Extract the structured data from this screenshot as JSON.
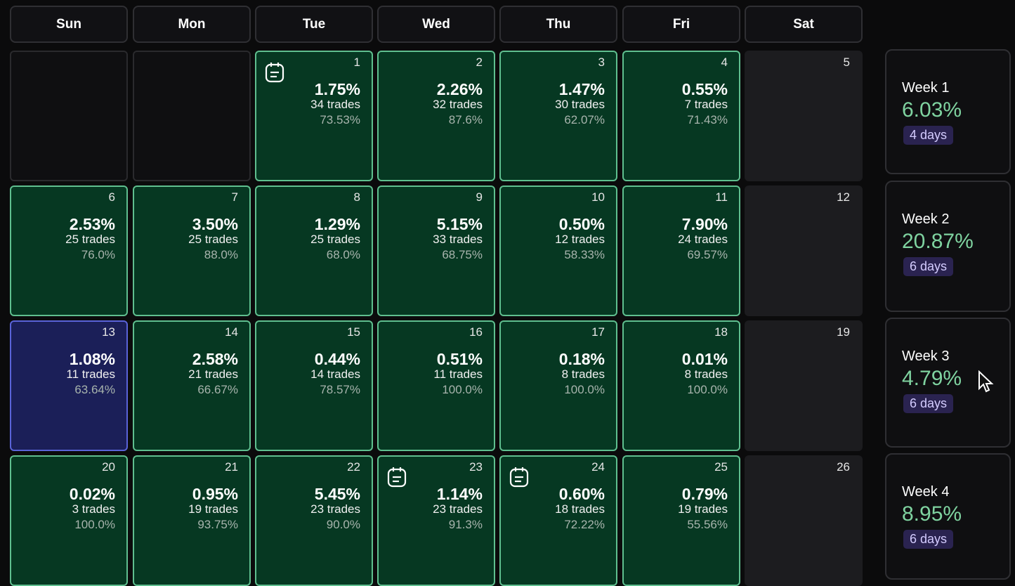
{
  "weekdays": [
    "Sun",
    "Mon",
    "Tue",
    "Wed",
    "Thu",
    "Fri",
    "Sat"
  ],
  "weeks": [
    {
      "label": "Week 1",
      "pct": "6.03%",
      "days_count": "4 days",
      "cells": [
        null,
        null,
        {
          "date": "1",
          "pct": "1.75%",
          "trades": "34 trades",
          "winrate": "73.53%",
          "note": true
        },
        {
          "date": "2",
          "pct": "2.26%",
          "trades": "32 trades",
          "winrate": "87.6%"
        },
        {
          "date": "3",
          "pct": "1.47%",
          "trades": "30 trades",
          "winrate": "62.07%"
        },
        {
          "date": "4",
          "pct": "0.55%",
          "trades": "7 trades",
          "winrate": "71.43%"
        },
        {
          "date": "5"
        }
      ]
    },
    {
      "label": "Week 2",
      "pct": "20.87%",
      "days_count": "6 days",
      "cells": [
        {
          "date": "6",
          "pct": "2.53%",
          "trades": "25 trades",
          "winrate": "76.0%"
        },
        {
          "date": "7",
          "pct": "3.50%",
          "trades": "25 trades",
          "winrate": "88.0%"
        },
        {
          "date": "8",
          "pct": "1.29%",
          "trades": "25 trades",
          "winrate": "68.0%"
        },
        {
          "date": "9",
          "pct": "5.15%",
          "trades": "33 trades",
          "winrate": "68.75%"
        },
        {
          "date": "10",
          "pct": "0.50%",
          "trades": "12 trades",
          "winrate": "58.33%"
        },
        {
          "date": "11",
          "pct": "7.90%",
          "trades": "24 trades",
          "winrate": "69.57%"
        },
        {
          "date": "12"
        }
      ]
    },
    {
      "label": "Week 3",
      "pct": "4.79%",
      "days_count": "6 days",
      "cells": [
        {
          "date": "13",
          "pct": "1.08%",
          "trades": "11 trades",
          "winrate": "63.64%",
          "selected": true
        },
        {
          "date": "14",
          "pct": "2.58%",
          "trades": "21 trades",
          "winrate": "66.67%"
        },
        {
          "date": "15",
          "pct": "0.44%",
          "trades": "14 trades",
          "winrate": "78.57%"
        },
        {
          "date": "16",
          "pct": "0.51%",
          "trades": "11 trades",
          "winrate": "100.0%"
        },
        {
          "date": "17",
          "pct": "0.18%",
          "trades": "8 trades",
          "winrate": "100.0%"
        },
        {
          "date": "18",
          "pct": "0.01%",
          "trades": "8 trades",
          "winrate": "100.0%"
        },
        {
          "date": "19"
        }
      ]
    },
    {
      "label": "Week 4",
      "pct": "8.95%",
      "days_count": "6 days",
      "cells": [
        {
          "date": "20",
          "pct": "0.02%",
          "trades": "3 trades",
          "winrate": "100.0%"
        },
        {
          "date": "21",
          "pct": "0.95%",
          "trades": "19 trades",
          "winrate": "93.75%"
        },
        {
          "date": "22",
          "pct": "5.45%",
          "trades": "23 trades",
          "winrate": "90.0%"
        },
        {
          "date": "23",
          "pct": "1.14%",
          "trades": "23 trades",
          "winrate": "91.3%",
          "note": true
        },
        {
          "date": "24",
          "pct": "0.60%",
          "trades": "18 trades",
          "winrate": "72.22%",
          "note": true
        },
        {
          "date": "25",
          "pct": "0.79%",
          "trades": "19 trades",
          "winrate": "55.56%"
        },
        {
          "date": "26"
        }
      ]
    }
  ]
}
